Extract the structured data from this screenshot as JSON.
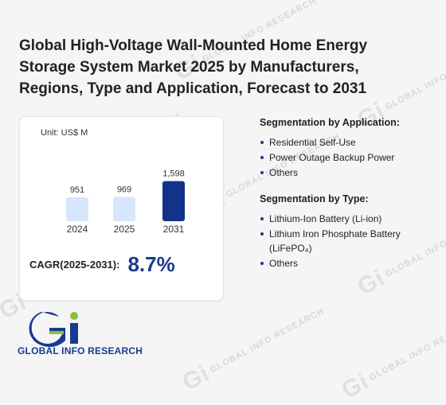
{
  "title": "Global High-Voltage Wall-Mounted Home Energy Storage System Market 2025 by Manufacturers, Regions, Type and Application, Forecast to 2031",
  "watermark": "GLOBAL INFO RESEARCH",
  "unit": "Unit: US$ M",
  "cagr": {
    "label": "CAGR(2025-2031):",
    "value": "8.7%"
  },
  "chart_data": {
    "type": "bar",
    "categories": [
      "2024",
      "2025",
      "2031"
    ],
    "values": [
      951,
      969,
      1598
    ],
    "data_labels": [
      "951",
      "969",
      "1,598"
    ],
    "colors": [
      "#d6e6fb",
      "#d6e6fb",
      "#13338a"
    ],
    "ylabel": "Unit: US$ M",
    "ylim": [
      0,
      1650
    ]
  },
  "segmentation_application": {
    "heading": "Segmentation by Application:",
    "items": [
      "Residential Self-Use",
      "Power Outage Backup Power",
      "Others"
    ]
  },
  "segmentation_type": {
    "heading": "Segmentation by Type:",
    "items": [
      "Lithium-Ion Battery (Li-ion)",
      "Lithium Iron Phosphate Battery (LiFePO₄)",
      "Others"
    ]
  },
  "logo": {
    "text": "GLOBAL INFO RESEARCH",
    "colors": {
      "primary": "#1a3a8e",
      "green": "#8bbf3a"
    }
  }
}
